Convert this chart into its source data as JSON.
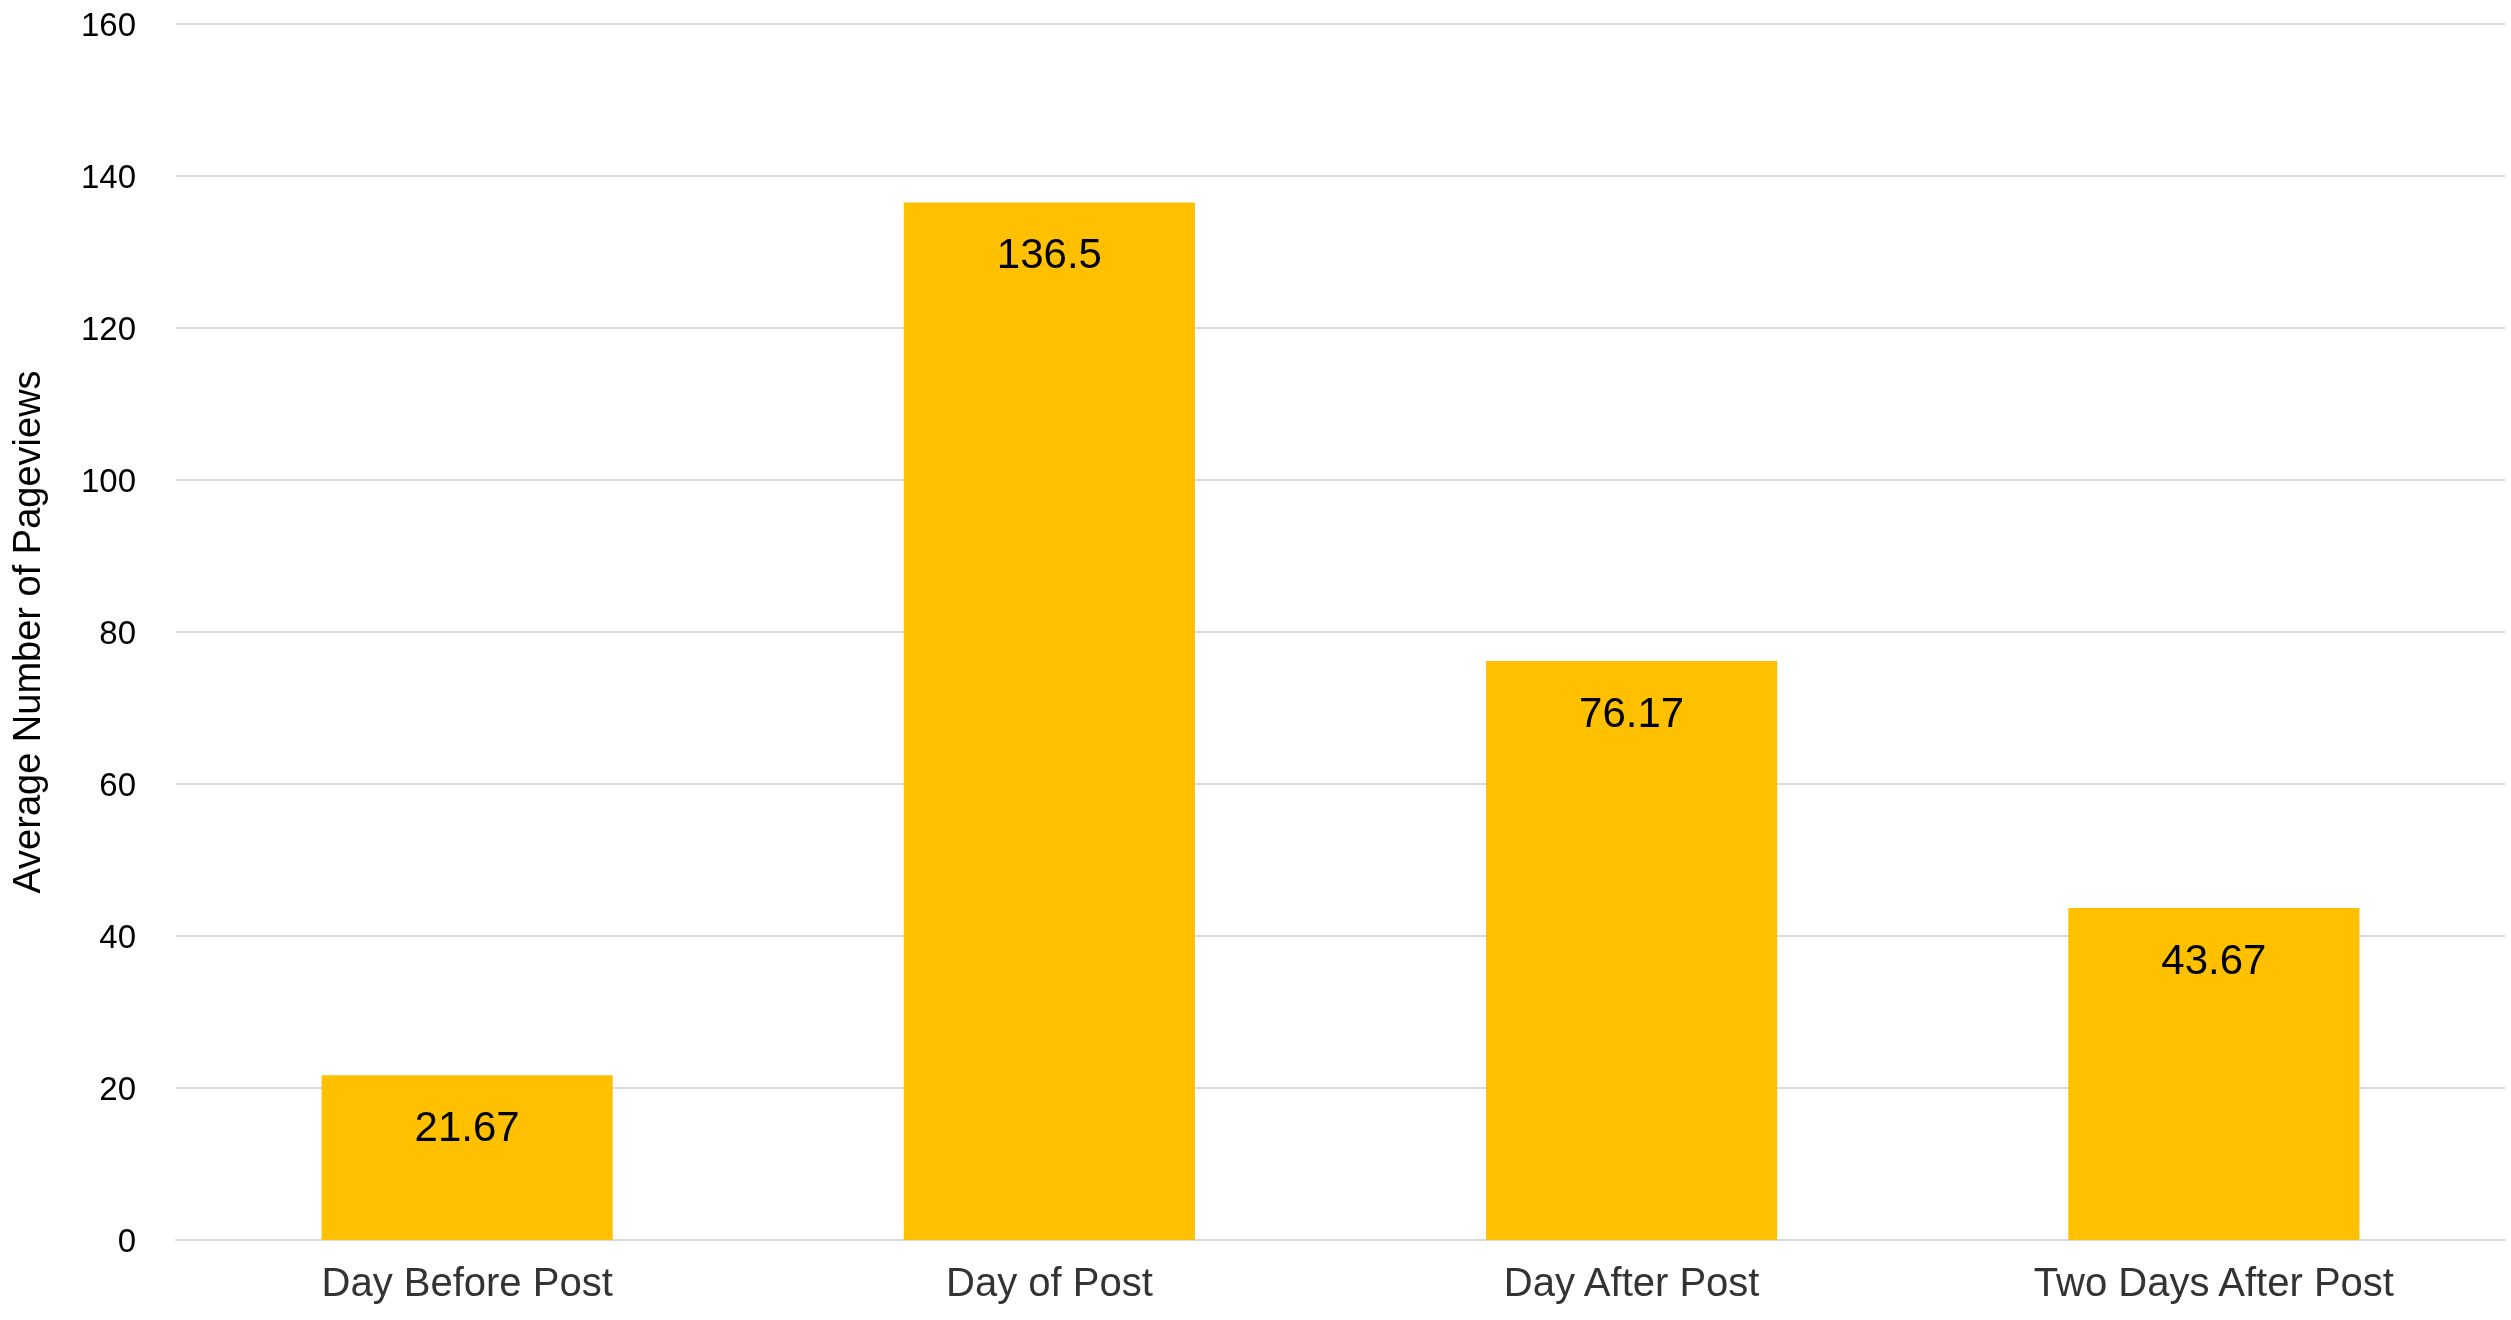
{
  "chart_data": {
    "type": "bar",
    "ylabel": "Average Number of Pageviews",
    "categories": [
      "Day Before Post",
      "Day of Post",
      "Day After Post",
      "Two Days After Post"
    ],
    "values": [
      21.67,
      136.5,
      76.17,
      43.67
    ],
    "color": "#ffc000",
    "ylim": [
      0,
      160
    ],
    "yticks": [
      0,
      20,
      40,
      60,
      80,
      100,
      120,
      140,
      160
    ],
    "grid": "y",
    "data_labels": true
  }
}
